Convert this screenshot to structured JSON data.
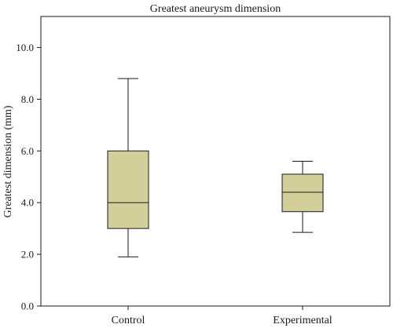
{
  "chart_data": {
    "type": "box",
    "title": "Greatest aneurysm dimension",
    "xlabel": "",
    "ylabel": "Greatest dimension (mm)",
    "ylim": [
      0,
      11.2
    ],
    "yticks": [
      0,
      2,
      4,
      6,
      8,
      10
    ],
    "ytick_labels": [
      "0.0",
      "2.0",
      "4.0",
      "6.0",
      "8.0",
      "10.0"
    ],
    "categories": [
      "Control",
      "Experimental"
    ],
    "boxes": [
      {
        "category": "Control",
        "min": 1.9,
        "q1": 3.0,
        "median": 4.0,
        "q3": 6.0,
        "max": 8.8
      },
      {
        "category": "Experimental",
        "min": 2.85,
        "q1": 3.65,
        "median": 4.4,
        "q3": 5.1,
        "max": 5.6
      }
    ],
    "grid": false,
    "colors": {
      "box_fill": "#d3cf9a",
      "stroke": "#1a1a1a"
    }
  }
}
